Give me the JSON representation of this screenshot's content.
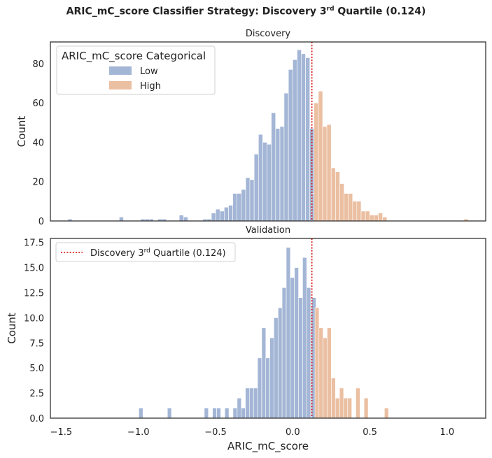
{
  "suptitle": {
    "prefix": "ARIC_mC_score Classifier Strategy: Discovery 3",
    "sup": "rd",
    "suffix": " Quartile (0.124)"
  },
  "colors": {
    "low": "#a4b6d6",
    "high": "#ebbfa2",
    "threshold": "#d40000",
    "axis": "#333333"
  },
  "chart_data": [
    {
      "type": "bar",
      "subtype": "histogram",
      "title": "Discovery",
      "xlabel": "",
      "ylabel": "Count",
      "xlim": [
        -1.57,
        1.25
      ],
      "ylim": [
        0,
        91
      ],
      "yticks": [
        0,
        20,
        40,
        60,
        80
      ],
      "yticklabels": [
        "0",
        "20",
        "40",
        "60",
        "80"
      ],
      "bin_width": 0.0277,
      "legend": {
        "title": "ARIC_mC_score Categorical",
        "position": "top-left",
        "entries": [
          "Low",
          "High"
        ]
      },
      "threshold": 0.124,
      "series": [
        {
          "name": "Low",
          "color": "#a4b6d6",
          "bins": [
            [
              -1.457,
              1
            ],
            [
              -1.124,
              2
            ],
            [
              -0.985,
              1
            ],
            [
              -0.957,
              1
            ],
            [
              -0.93,
              1
            ],
            [
              -0.874,
              1
            ],
            [
              -0.846,
              1
            ],
            [
              -0.735,
              3
            ],
            [
              -0.707,
              2
            ],
            [
              -0.582,
              1
            ],
            [
              -0.555,
              1
            ],
            [
              -0.527,
              4
            ],
            [
              -0.499,
              6
            ],
            [
              -0.472,
              5
            ],
            [
              -0.444,
              7
            ],
            [
              -0.416,
              8
            ],
            [
              -0.388,
              14
            ],
            [
              -0.361,
              14
            ],
            [
              -0.333,
              16
            ],
            [
              -0.305,
              22
            ],
            [
              -0.278,
              21
            ],
            [
              -0.25,
              34
            ],
            [
              -0.222,
              44
            ],
            [
              -0.194,
              40
            ],
            [
              -0.167,
              39
            ],
            [
              -0.139,
              55
            ],
            [
              -0.111,
              47
            ],
            [
              -0.083,
              48
            ],
            [
              -0.056,
              65
            ],
            [
              -0.028,
              77
            ],
            [
              0.0,
              82
            ],
            [
              0.028,
              87
            ],
            [
              0.055,
              85
            ],
            [
              0.083,
              83
            ],
            [
              0.11,
              47
            ],
            [
              0.124,
              14
            ]
          ]
        },
        {
          "name": "High",
          "color": "#ebbfa2",
          "bins": [
            [
              0.138,
              60
            ],
            [
              0.166,
              66
            ],
            [
              0.194,
              48
            ],
            [
              0.221,
              49
            ],
            [
              0.249,
              27
            ],
            [
              0.277,
              25
            ],
            [
              0.305,
              19
            ],
            [
              0.332,
              14
            ],
            [
              0.36,
              14
            ],
            [
              0.388,
              10
            ],
            [
              0.415,
              10
            ],
            [
              0.443,
              5
            ],
            [
              0.471,
              5
            ],
            [
              0.498,
              3
            ],
            [
              0.526,
              3
            ],
            [
              0.554,
              4
            ],
            [
              0.582,
              2
            ],
            [
              1.109,
              1
            ]
          ]
        }
      ]
    },
    {
      "type": "bar",
      "subtype": "histogram",
      "title": "Validation",
      "xlabel": "ARIC_mC_score",
      "ylabel": "Count",
      "xlim": [
        -1.57,
        1.25
      ],
      "ylim": [
        0,
        17.9
      ],
      "xticks": [
        -1.5,
        -1.0,
        -0.5,
        0.0,
        0.5,
        1.0
      ],
      "xticklabels": [
        "−1.5",
        "−1.0",
        "−0.5",
        "0.0",
        "0.5",
        "1.0"
      ],
      "yticks": [
        0.0,
        2.5,
        5.0,
        7.5,
        10.0,
        12.5,
        15.0,
        17.5
      ],
      "yticklabels": [
        "0.0",
        "2.5",
        "5.0",
        "7.5",
        "10.0",
        "12.5",
        "15.0",
        "17.5"
      ],
      "bin_width": 0.0265,
      "legend": {
        "position": "top-left",
        "label_prefix": "Discovery 3",
        "label_sup": "rd",
        "label_suffix": " Quartile (0.124)"
      },
      "threshold": 0.124,
      "series": [
        {
          "name": "Low",
          "color": "#a4b6d6",
          "bins": [
            [
              -0.997,
              1
            ],
            [
              -0.812,
              1
            ],
            [
              -0.573,
              1
            ],
            [
              -0.52,
              1
            ],
            [
              -0.493,
              1
            ],
            [
              -0.44,
              1
            ],
            [
              -0.387,
              1
            ],
            [
              -0.36,
              2
            ],
            [
              -0.334,
              1
            ],
            [
              -0.307,
              3
            ],
            [
              -0.281,
              3
            ],
            [
              -0.254,
              3
            ],
            [
              -0.228,
              6
            ],
            [
              -0.201,
              9
            ],
            [
              -0.175,
              6
            ],
            [
              -0.148,
              8
            ],
            [
              -0.122,
              10
            ],
            [
              -0.095,
              11
            ],
            [
              -0.069,
              13
            ],
            [
              -0.042,
              17
            ],
            [
              -0.016,
              14
            ],
            [
              0.011,
              15
            ],
            [
              0.037,
              12
            ],
            [
              0.064,
              16
            ],
            [
              0.09,
              13
            ],
            [
              0.117,
              11
            ],
            [
              0.124,
              12
            ]
          ]
        },
        {
          "name": "High",
          "color": "#ebbfa2",
          "bins": [
            [
              0.144,
              11
            ],
            [
              0.17,
              9
            ],
            [
              0.197,
              8
            ],
            [
              0.223,
              9
            ],
            [
              0.25,
              4
            ],
            [
              0.276,
              2
            ],
            [
              0.303,
              3
            ],
            [
              0.329,
              2
            ],
            [
              0.356,
              2
            ],
            [
              0.409,
              3
            ],
            [
              0.462,
              2
            ],
            [
              0.594,
              1
            ]
          ]
        }
      ]
    }
  ]
}
